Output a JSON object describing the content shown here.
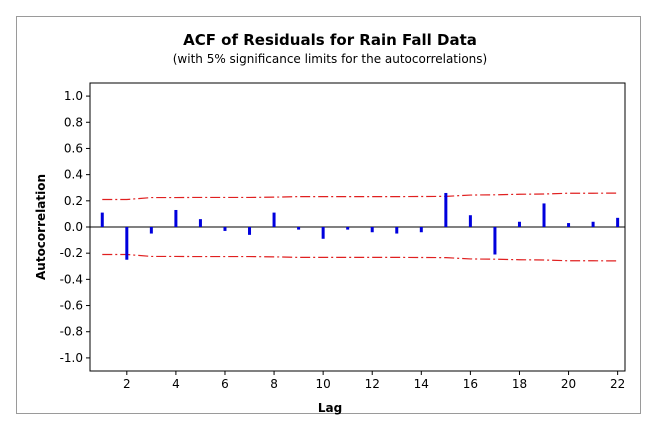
{
  "chart_data": {
    "type": "bar",
    "title": "ACF of Residuals for Rain Fall Data",
    "subtitle": "(with 5% significance limits for the autocorrelations)",
    "xlabel": "Lag",
    "ylabel": "Autocorrelation",
    "xlim": [
      0.5,
      22.3
    ],
    "ylim": [
      -1.1,
      1.1
    ],
    "x_ticks": [
      2,
      4,
      6,
      8,
      10,
      12,
      14,
      16,
      18,
      20,
      22
    ],
    "y_ticks": [
      -1.0,
      -0.8,
      -0.6,
      -0.4,
      -0.2,
      0.0,
      0.2,
      0.4,
      0.6,
      0.8,
      1.0
    ],
    "y_tick_labels": [
      "-1.0",
      "-0.8",
      "-0.6",
      "-0.4",
      "-0.2",
      "0.0",
      "0.2",
      "0.4",
      "0.6",
      "0.8",
      "1.0"
    ],
    "lags": [
      1,
      2,
      3,
      4,
      5,
      6,
      7,
      8,
      9,
      10,
      11,
      12,
      13,
      14,
      15,
      16,
      17,
      18,
      19,
      20,
      21,
      22
    ],
    "values": [
      0.11,
      -0.25,
      -0.05,
      0.13,
      0.06,
      -0.03,
      -0.06,
      0.11,
      -0.02,
      -0.09,
      -0.02,
      -0.04,
      -0.05,
      -0.04,
      0.26,
      0.09,
      -0.21,
      0.04,
      0.18,
      0.03,
      0.04,
      0.07
    ],
    "upper_limit": [
      0.21,
      0.21,
      0.225,
      0.225,
      0.226,
      0.226,
      0.226,
      0.228,
      0.232,
      0.232,
      0.232,
      0.232,
      0.232,
      0.233,
      0.234,
      0.244,
      0.246,
      0.25,
      0.252,
      0.258,
      0.258,
      0.259
    ],
    "lower_limit": [
      -0.21,
      -0.21,
      -0.225,
      -0.225,
      -0.226,
      -0.226,
      -0.226,
      -0.228,
      -0.232,
      -0.232,
      -0.232,
      -0.232,
      -0.232,
      -0.233,
      -0.234,
      -0.244,
      -0.246,
      -0.25,
      -0.252,
      -0.258,
      -0.258,
      -0.259
    ],
    "colors": {
      "bars": "#0000dd",
      "limits": "#e02020",
      "zero_line": "#000000",
      "axes": "#000000"
    },
    "grid": false
  }
}
